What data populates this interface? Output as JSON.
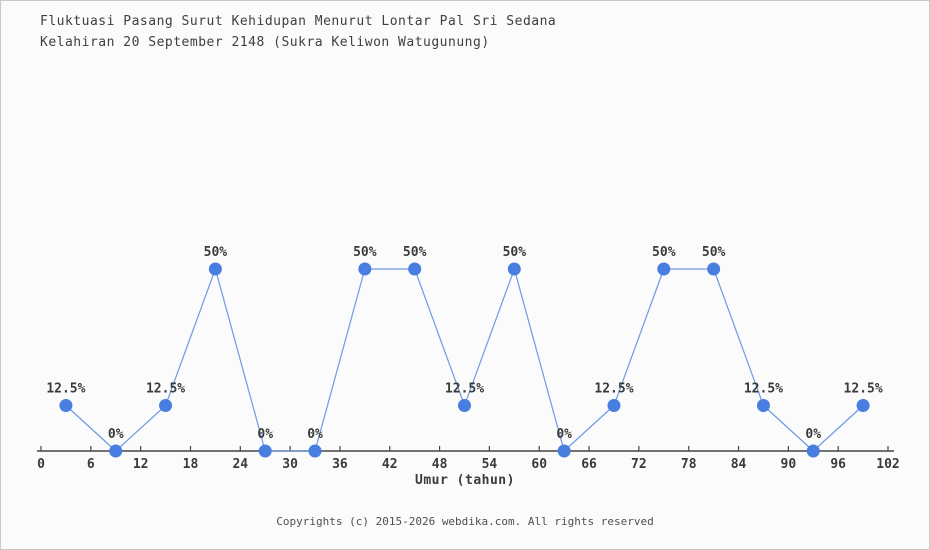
{
  "page": {
    "background_color": "#fbfbfb",
    "border_color": "#c9c9c9"
  },
  "chart_data": {
    "type": "line",
    "title_line1": "Fluktuasi Pasang Surut Kehidupan Menurut Lontar Pal Sri Sedana",
    "title_line2": "Kelahiran 20 September 2148 (Sukra Keliwon Watugunung)",
    "xlabel": "Umur (tahun)",
    "x": [
      3,
      9,
      15,
      21,
      27,
      33,
      39,
      45,
      51,
      57,
      63,
      69,
      75,
      81,
      87,
      93,
      99
    ],
    "values": [
      12.5,
      0,
      12.5,
      50,
      0,
      0,
      50,
      50,
      12.5,
      50,
      0,
      12.5,
      50,
      50,
      12.5,
      0,
      12.5
    ],
    "point_labels": [
      "12.5%",
      "0%",
      "12.5%",
      "50%",
      "0%",
      "0%",
      "50%",
      "50%",
      "12.5%",
      "50%",
      "0%",
      "12.5%",
      "50%",
      "50%",
      "12.5%",
      "0%",
      "12.5%"
    ],
    "x_ticks": [
      0,
      6,
      12,
      18,
      24,
      30,
      36,
      42,
      48,
      54,
      60,
      66,
      72,
      78,
      84,
      90,
      96,
      102
    ],
    "xlim": [
      0,
      102
    ],
    "ylim": [
      0,
      50
    ],
    "grid": false,
    "legend": false,
    "line_color": "#6d9ae3",
    "marker_color": "#477ee0",
    "axis_color": "#444444",
    "label_color": "#3a3a3a"
  },
  "footer": {
    "text": "Copyrights (c) 2015-2026 webdika.com. All rights reserved"
  }
}
